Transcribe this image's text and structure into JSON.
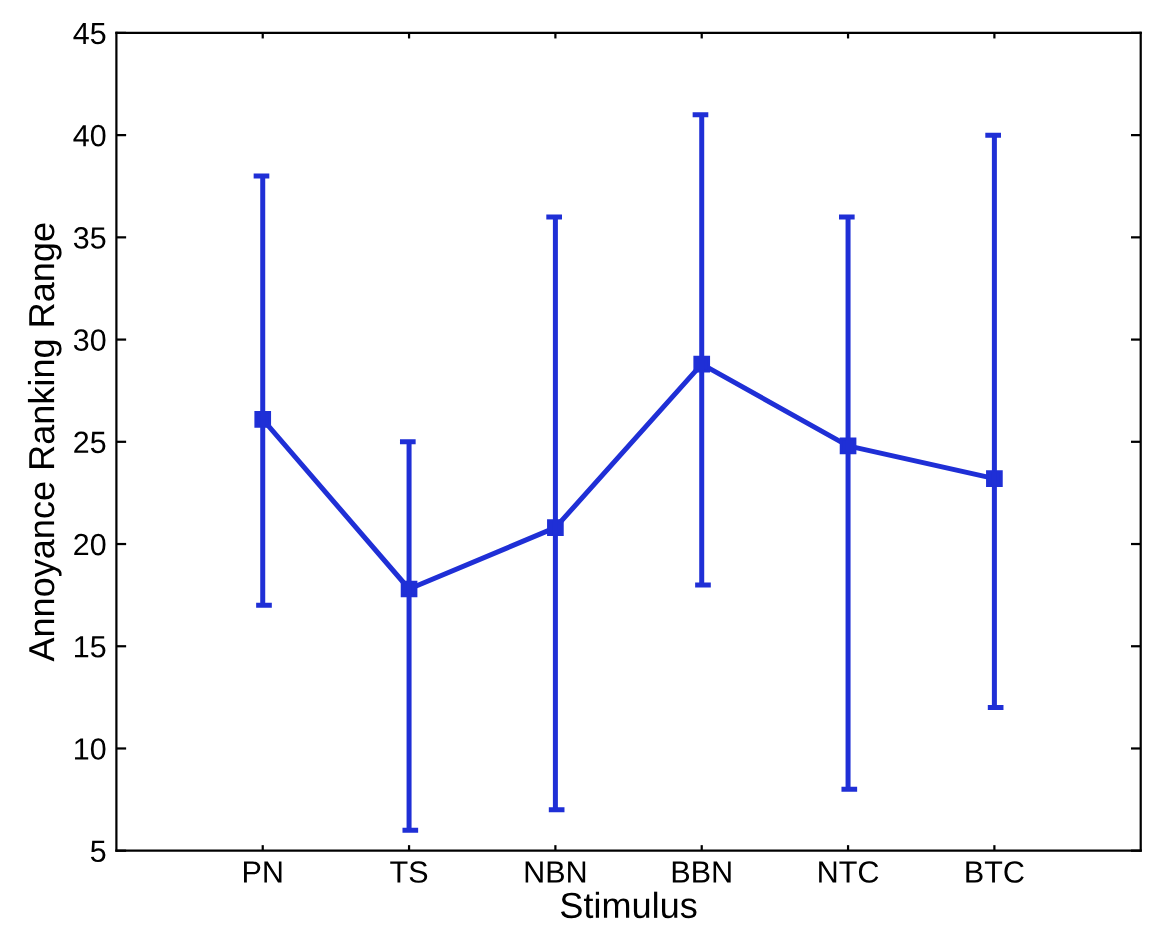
{
  "chart_data": {
    "type": "line",
    "xlabel": "Stimulus",
    "ylabel": "Annoyance Ranking Range",
    "categories": [
      "PN",
      "TS",
      "NBN",
      "BBN",
      "NTC",
      "BTC"
    ],
    "series": [
      {
        "color": "#1f2fd6",
        "values": [
          26.1,
          17.8,
          20.8,
          28.8,
          24.8,
          23.2
        ],
        "errors": [
          [
            17,
            38
          ],
          [
            6,
            25
          ],
          [
            7,
            36
          ],
          [
            18,
            41
          ],
          [
            8,
            36
          ],
          [
            12,
            40
          ]
        ]
      }
    ],
    "ylim": [
      5,
      45
    ],
    "yticks": [
      5,
      10,
      15,
      20,
      25,
      30,
      35,
      40,
      45
    ],
    "marker": "square",
    "line_style": "solid",
    "grid": false,
    "legend": false
  }
}
